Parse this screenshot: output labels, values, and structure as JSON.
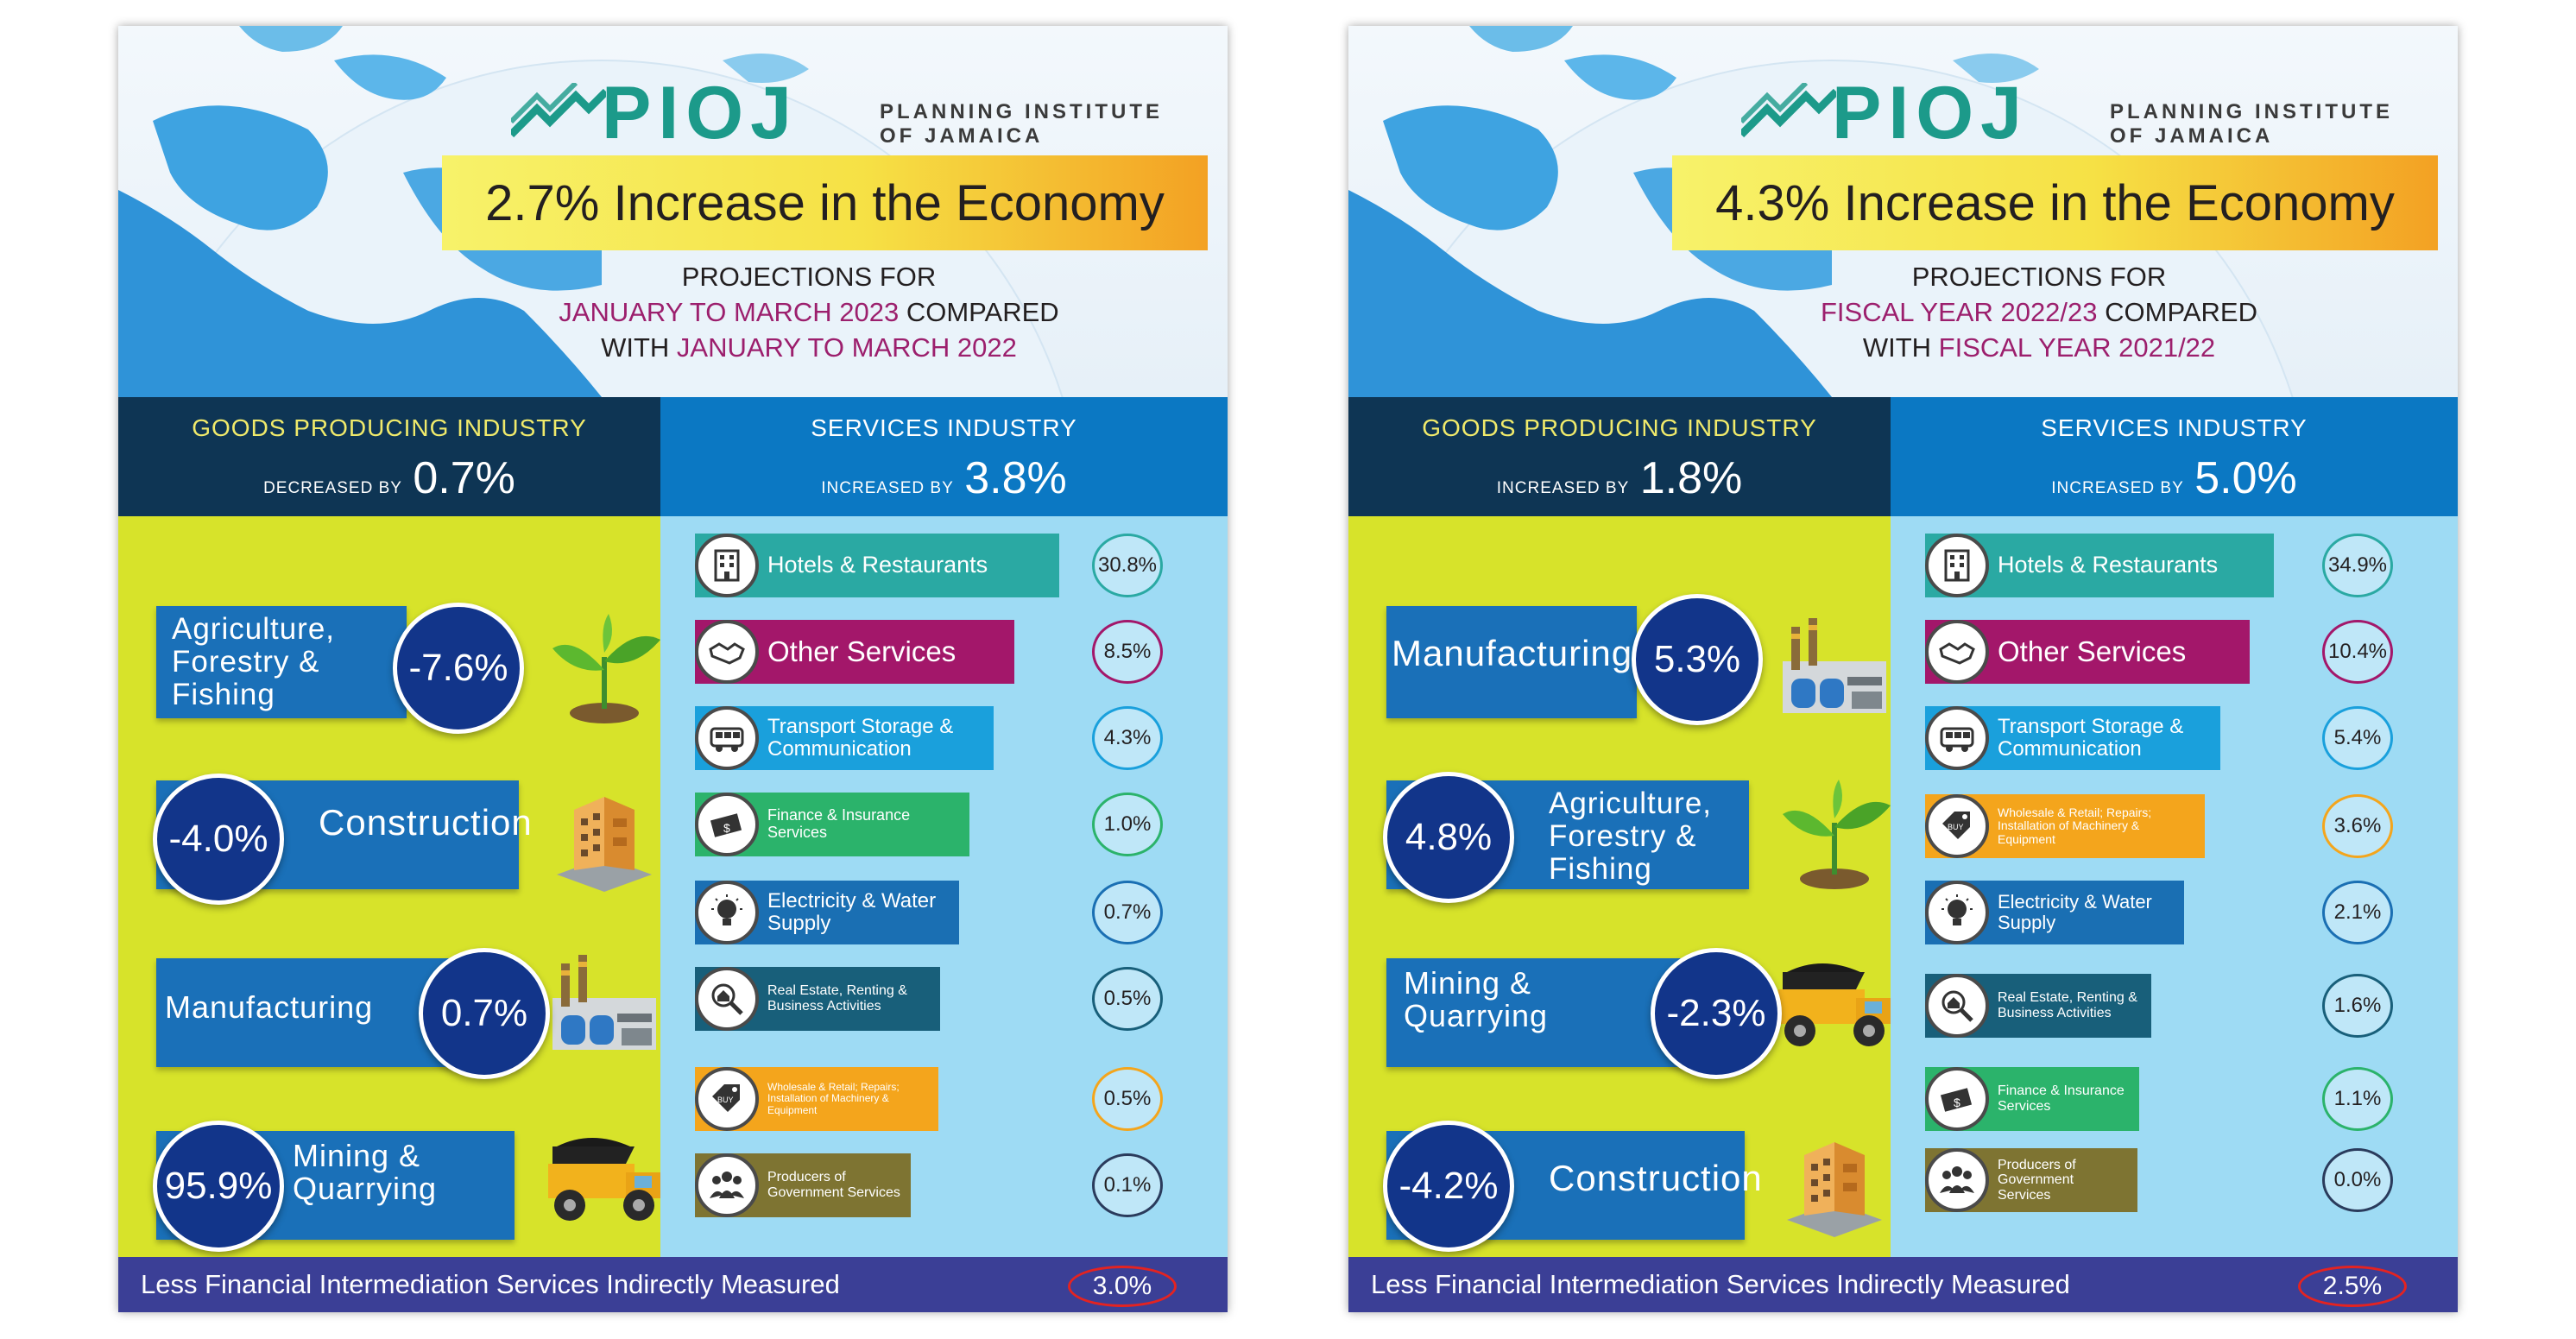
{
  "colors": {
    "logo": "#1c9a8a",
    "goods_header": "#0e3554",
    "services_header": "#0b78c3",
    "goods_bg": "#d7e32a",
    "services_bg": "#9edbf4",
    "footer": "#3b3f96",
    "highlight": "#9c1f6d",
    "goods_box": "#1a70b8",
    "circle": "#12358a"
  },
  "panels": [
    {
      "logo": {
        "wordmark": "PIOJ",
        "line1": "PLANNING INSTITUTE",
        "line2": "OF JAMAICA"
      },
      "headline": "2.7% Increase in the Economy",
      "projection": {
        "line1": "PROJECTIONS FOR",
        "period1": "JANUARY TO MARCH 2023",
        "compared": " COMPARED",
        "with": "WITH ",
        "period2": "JANUARY TO MARCH 2022"
      },
      "goods": {
        "title": "GOODS PRODUCING INDUSTRY",
        "direction": "DECREASED BY",
        "value": "0.7%",
        "items": [
          {
            "label_lines": [
              "Agriculture,",
              "Forestry &",
              "Fishing"
            ],
            "value": "-7.6%",
            "icon": "plant-icon"
          },
          {
            "label_lines": [
              "Construction"
            ],
            "value": "-4.0%",
            "icon": "building-icon"
          },
          {
            "label_lines": [
              "Manufacturing"
            ],
            "value": "0.7%",
            "icon": "factory-icon"
          },
          {
            "label_lines": [
              "Mining &",
              "Quarrying"
            ],
            "value": "95.9%",
            "icon": "dump-truck-icon"
          }
        ]
      },
      "services": {
        "title": "SERVICES INDUSTRY",
        "direction": "INCREASED BY",
        "value": "3.8%",
        "items": [
          {
            "label": "Hotels & Restaurants",
            "value": "30.8%",
            "color": "#2aa9a3",
            "ring": "#2aa9a3",
            "icon": "hotel-icon"
          },
          {
            "label": "Other Services",
            "value": "8.5%",
            "color": "#a3176a",
            "ring": "#a3176a",
            "icon": "handshake-icon"
          },
          {
            "label": "Transport Storage & Communication",
            "value": "4.3%",
            "color": "#1aa0dc",
            "ring": "#1aa0dc",
            "icon": "bus-icon"
          },
          {
            "label": "Finance & Insurance Services",
            "value": "1.0%",
            "color": "#2bb36b",
            "ring": "#2bb36b",
            "icon": "money-icon"
          },
          {
            "label": "Electricity & Water Supply",
            "value": "0.7%",
            "color": "#1a6fb3",
            "ring": "#1a6fb3",
            "icon": "lightbulb-icon"
          },
          {
            "label": "Real Estate, Renting & Business Activities",
            "value": "0.5%",
            "color": "#185f7a",
            "ring": "#185f7a",
            "icon": "real-estate-icon"
          },
          {
            "label": "Wholesale & Retail; Repairs; Installation of Machinery & Equipment",
            "value": "0.5%",
            "color": "#f4a51c",
            "ring": "#f4a51c",
            "icon": "price-tag-icon"
          },
          {
            "label": "Producers of Government Services",
            "value": "0.1%",
            "color": "#7e7432",
            "ring": "#2a3b5c",
            "icon": "people-icon"
          }
        ]
      },
      "footer": {
        "label": "Less Financial Intermediation Services Indirectly Measured",
        "value": "3.0%"
      }
    },
    {
      "logo": {
        "wordmark": "PIOJ",
        "line1": "PLANNING INSTITUTE",
        "line2": "OF JAMAICA"
      },
      "headline": "4.3% Increase in the Economy",
      "projection": {
        "line1": "PROJECTIONS FOR",
        "period1": "FISCAL YEAR 2022/23",
        "compared": " COMPARED",
        "with": "WITH ",
        "period2": "FISCAL YEAR 2021/22"
      },
      "goods": {
        "title": "GOODS PRODUCING INDUSTRY",
        "direction": "INCREASED BY",
        "value": "1.8%",
        "items": [
          {
            "label_lines": [
              "Manufacturing"
            ],
            "value": "5.3%",
            "icon": "factory-icon"
          },
          {
            "label_lines": [
              "Agriculture,",
              "Forestry &",
              "Fishing"
            ],
            "value": "4.8%",
            "icon": "plant-icon"
          },
          {
            "label_lines": [
              "Mining &",
              "Quarrying"
            ],
            "value": "-2.3%",
            "icon": "dump-truck-icon"
          },
          {
            "label_lines": [
              "Construction"
            ],
            "value": "-4.2%",
            "icon": "building-icon"
          }
        ]
      },
      "services": {
        "title": "SERVICES INDUSTRY",
        "direction": "INCREASED BY",
        "value": "5.0%",
        "items": [
          {
            "label": "Hotels & Restaurants",
            "value": "34.9%",
            "color": "#2aa9a3",
            "ring": "#2aa9a3",
            "icon": "hotel-icon"
          },
          {
            "label": "Other Services",
            "value": "10.4%",
            "color": "#a3176a",
            "ring": "#a3176a",
            "icon": "handshake-icon"
          },
          {
            "label": "Transport Storage & Communication",
            "value": "5.4%",
            "color": "#1aa0dc",
            "ring": "#1aa0dc",
            "icon": "bus-icon"
          },
          {
            "label": "Wholesale & Retail; Repairs; Installation of Machinery & Equipment",
            "value": "3.6%",
            "color": "#f4a51c",
            "ring": "#f4a51c",
            "icon": "price-tag-icon"
          },
          {
            "label": "Electricity & Water Supply",
            "value": "2.1%",
            "color": "#1a6fb3",
            "ring": "#1a6fb3",
            "icon": "lightbulb-icon"
          },
          {
            "label": "Real Estate, Renting & Business Activities",
            "value": "1.6%",
            "color": "#185f7a",
            "ring": "#185f7a",
            "icon": "real-estate-icon"
          },
          {
            "label": "Finance & Insurance Services",
            "value": "1.1%",
            "color": "#2bb36b",
            "ring": "#2bb36b",
            "icon": "money-icon"
          },
          {
            "label": "Producers of Government Services",
            "value": "0.0%",
            "color": "#7e7432",
            "ring": "#2a3b5c",
            "icon": "people-icon"
          }
        ]
      },
      "footer": {
        "label": "Less Financial Intermediation Services Indirectly Measured",
        "value": "2.5%"
      }
    }
  ]
}
